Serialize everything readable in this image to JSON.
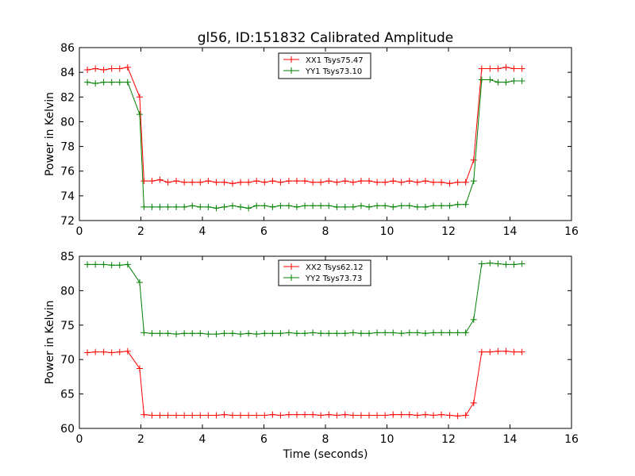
{
  "title": "gl56, ID:151832 Calibrated Amplitude",
  "chart_data": [
    {
      "type": "line",
      "title": "gl56, ID:151832 Calibrated Amplitude",
      "xlabel": "",
      "ylabel": "Power in Kelvin",
      "xlim": [
        0,
        16
      ],
      "ylim": [
        72,
        86
      ],
      "xticks": [
        0,
        2,
        4,
        6,
        8,
        10,
        12,
        14,
        16
      ],
      "yticks": [
        72,
        74,
        76,
        78,
        80,
        82,
        84,
        86
      ],
      "grid": false,
      "legend_position": "top-center",
      "series": [
        {
          "name": "XX1 Tsys75.47",
          "color": "#ff0000",
          "x": [
            0.26,
            0.52,
            0.79,
            1.05,
            1.31,
            1.57,
            1.96,
            2.1,
            2.36,
            2.62,
            2.88,
            3.15,
            3.41,
            3.67,
            3.93,
            4.19,
            4.45,
            4.71,
            4.98,
            5.24,
            5.5,
            5.76,
            6.02,
            6.28,
            6.54,
            6.81,
            7.07,
            7.33,
            7.59,
            7.85,
            8.11,
            8.37,
            8.64,
            8.9,
            9.16,
            9.42,
            9.68,
            9.94,
            10.2,
            10.47,
            10.73,
            10.99,
            11.25,
            11.51,
            11.77,
            12.04,
            12.3,
            12.56,
            12.82,
            13.08,
            13.35,
            13.61,
            13.87,
            14.13,
            14.39
          ],
          "values": [
            84.2,
            84.3,
            84.2,
            84.3,
            84.3,
            84.4,
            82.0,
            75.2,
            75.2,
            75.3,
            75.1,
            75.2,
            75.1,
            75.1,
            75.1,
            75.2,
            75.1,
            75.1,
            75.0,
            75.1,
            75.1,
            75.2,
            75.1,
            75.2,
            75.1,
            75.2,
            75.2,
            75.2,
            75.1,
            75.1,
            75.2,
            75.1,
            75.2,
            75.1,
            75.2,
            75.2,
            75.1,
            75.1,
            75.2,
            75.1,
            75.2,
            75.1,
            75.2,
            75.1,
            75.1,
            75.0,
            75.1,
            75.1,
            76.9,
            84.3,
            84.3,
            84.3,
            84.4,
            84.3,
            84.3
          ]
        },
        {
          "name": "YY1 Tsys73.10",
          "color": "#008000",
          "x": [
            0.26,
            0.52,
            0.79,
            1.05,
            1.31,
            1.57,
            1.96,
            2.1,
            2.36,
            2.62,
            2.88,
            3.15,
            3.41,
            3.67,
            3.93,
            4.19,
            4.45,
            4.71,
            4.98,
            5.24,
            5.5,
            5.76,
            6.02,
            6.28,
            6.54,
            6.81,
            7.07,
            7.33,
            7.59,
            7.85,
            8.11,
            8.37,
            8.64,
            8.9,
            9.16,
            9.42,
            9.68,
            9.94,
            10.2,
            10.47,
            10.73,
            10.99,
            11.25,
            11.51,
            11.77,
            12.04,
            12.3,
            12.56,
            12.82,
            13.08,
            13.35,
            13.61,
            13.87,
            14.13,
            14.39
          ],
          "values": [
            83.2,
            83.1,
            83.2,
            83.2,
            83.2,
            83.2,
            80.6,
            73.1,
            73.1,
            73.1,
            73.1,
            73.1,
            73.1,
            73.2,
            73.1,
            73.1,
            73.0,
            73.1,
            73.2,
            73.1,
            73.0,
            73.2,
            73.2,
            73.1,
            73.2,
            73.2,
            73.1,
            73.2,
            73.2,
            73.2,
            73.2,
            73.1,
            73.1,
            73.1,
            73.2,
            73.1,
            73.2,
            73.2,
            73.1,
            73.2,
            73.2,
            73.1,
            73.1,
            73.2,
            73.2,
            73.2,
            73.3,
            73.3,
            75.2,
            83.4,
            83.4,
            83.2,
            83.2,
            83.3,
            83.3
          ]
        }
      ]
    },
    {
      "type": "line",
      "title": "",
      "xlabel": "Time (seconds)",
      "ylabel": "Power in Kelvin",
      "xlim": [
        0,
        16
      ],
      "ylim": [
        60,
        85
      ],
      "xticks": [
        0,
        2,
        4,
        6,
        8,
        10,
        12,
        14,
        16
      ],
      "yticks": [
        60,
        65,
        70,
        75,
        80,
        85
      ],
      "grid": false,
      "legend_position": "top-center",
      "series": [
        {
          "name": "XX2 Tsys62.12",
          "color": "#ff0000",
          "x": [
            0.26,
            0.52,
            0.79,
            1.05,
            1.31,
            1.57,
            1.96,
            2.1,
            2.36,
            2.62,
            2.88,
            3.15,
            3.41,
            3.67,
            3.93,
            4.19,
            4.45,
            4.71,
            4.98,
            5.24,
            5.5,
            5.76,
            6.02,
            6.28,
            6.54,
            6.81,
            7.07,
            7.33,
            7.59,
            7.85,
            8.11,
            8.37,
            8.64,
            8.9,
            9.16,
            9.42,
            9.68,
            9.94,
            10.2,
            10.47,
            10.73,
            10.99,
            11.25,
            11.51,
            11.77,
            12.04,
            12.3,
            12.56,
            12.82,
            13.08,
            13.35,
            13.61,
            13.87,
            14.13,
            14.39
          ],
          "values": [
            71.0,
            71.1,
            71.1,
            71.0,
            71.1,
            71.2,
            68.7,
            62.0,
            61.9,
            61.9,
            61.9,
            61.9,
            61.9,
            61.9,
            61.9,
            61.9,
            61.9,
            62.0,
            61.9,
            61.9,
            61.9,
            61.9,
            61.9,
            62.0,
            61.9,
            62.0,
            62.0,
            62.0,
            62.0,
            61.9,
            62.0,
            61.9,
            62.0,
            61.9,
            61.9,
            61.9,
            61.9,
            61.9,
            62.0,
            62.0,
            62.0,
            61.9,
            62.0,
            61.9,
            62.0,
            61.9,
            61.8,
            61.9,
            63.7,
            71.1,
            71.1,
            71.2,
            71.2,
            71.1,
            71.1
          ]
        },
        {
          "name": "YY2 Tsys73.73",
          "color": "#008000",
          "x": [
            0.26,
            0.52,
            0.79,
            1.05,
            1.31,
            1.57,
            1.96,
            2.1,
            2.36,
            2.62,
            2.88,
            3.15,
            3.41,
            3.67,
            3.93,
            4.19,
            4.45,
            4.71,
            4.98,
            5.24,
            5.5,
            5.76,
            6.02,
            6.28,
            6.54,
            6.81,
            7.07,
            7.33,
            7.59,
            7.85,
            8.11,
            8.37,
            8.64,
            8.9,
            9.16,
            9.42,
            9.68,
            9.94,
            10.2,
            10.47,
            10.73,
            10.99,
            11.25,
            11.51,
            11.77,
            12.04,
            12.3,
            12.56,
            12.82,
            13.08,
            13.35,
            13.61,
            13.87,
            14.13,
            14.39
          ],
          "values": [
            83.8,
            83.8,
            83.8,
            83.7,
            83.7,
            83.8,
            81.2,
            73.9,
            73.8,
            73.8,
            73.8,
            73.7,
            73.8,
            73.8,
            73.8,
            73.7,
            73.7,
            73.8,
            73.8,
            73.7,
            73.8,
            73.7,
            73.8,
            73.8,
            73.8,
            73.9,
            73.8,
            73.8,
            73.9,
            73.8,
            73.8,
            73.8,
            73.8,
            73.9,
            73.8,
            73.8,
            73.9,
            73.9,
            73.9,
            73.8,
            73.9,
            73.9,
            73.8,
            73.9,
            73.9,
            73.9,
            73.9,
            73.9,
            75.8,
            83.9,
            84.0,
            83.9,
            83.8,
            83.8,
            83.9
          ]
        }
      ]
    }
  ]
}
